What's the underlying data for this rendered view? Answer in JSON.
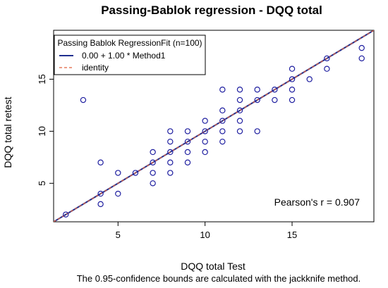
{
  "chart_data": {
    "type": "scatter",
    "title": "Passing-Bablok regression - DQQ total",
    "xlabel": "DQQ total Test",
    "ylabel": "DQQ total retest",
    "xlim": [
      1.3,
      19.7
    ],
    "ylim": [
      1.3,
      19.7
    ],
    "xticks": [
      5,
      10,
      15
    ],
    "yticks": [
      5,
      10,
      15
    ],
    "x_tick_labels": [
      "5",
      "10",
      "15"
    ],
    "y_tick_labels": [
      "5",
      "10",
      "15"
    ],
    "grid": false,
    "legend": {
      "placement": "top-left",
      "title": "Passing Bablok RegressionFit (n=100)",
      "entries": [
        {
          "label": "0.00 + 1.00 * Method1",
          "color": "#1f2f8f",
          "style": "solid"
        },
        {
          "label": "identity",
          "color": "#e0603c",
          "style": "dashed"
        }
      ]
    },
    "fit_line": {
      "intercept": 0.0,
      "slope": 1.0
    },
    "points": [
      [
        2,
        2
      ],
      [
        3,
        13
      ],
      [
        4,
        3
      ],
      [
        4,
        4
      ],
      [
        4,
        7
      ],
      [
        5,
        4
      ],
      [
        5,
        6
      ],
      [
        6,
        6
      ],
      [
        7,
        5
      ],
      [
        7,
        6
      ],
      [
        7,
        7
      ],
      [
        7,
        8
      ],
      [
        8,
        6
      ],
      [
        8,
        7
      ],
      [
        8,
        8
      ],
      [
        8,
        9
      ],
      [
        8,
        10
      ],
      [
        9,
        7
      ],
      [
        9,
        8
      ],
      [
        9,
        9
      ],
      [
        9,
        10
      ],
      [
        10,
        8
      ],
      [
        10,
        9
      ],
      [
        10,
        10
      ],
      [
        10,
        11
      ],
      [
        11,
        9
      ],
      [
        11,
        10
      ],
      [
        11,
        11
      ],
      [
        11,
        12
      ],
      [
        11,
        14
      ],
      [
        12,
        10
      ],
      [
        12,
        11
      ],
      [
        12,
        12
      ],
      [
        12,
        13
      ],
      [
        12,
        14
      ],
      [
        13,
        10
      ],
      [
        13,
        13
      ],
      [
        13,
        14
      ],
      [
        14,
        13
      ],
      [
        14,
        14
      ],
      [
        15,
        13
      ],
      [
        15,
        14
      ],
      [
        15,
        15
      ],
      [
        15,
        16
      ],
      [
        16,
        15
      ],
      [
        17,
        16
      ],
      [
        17,
        17
      ],
      [
        19,
        17
      ],
      [
        19,
        18
      ]
    ],
    "point_color": "#1f1fa0",
    "annotation": "Pearson's r = 0.907",
    "footnote": "The 0.95-confidence bounds are calculated with the jackknife method."
  }
}
